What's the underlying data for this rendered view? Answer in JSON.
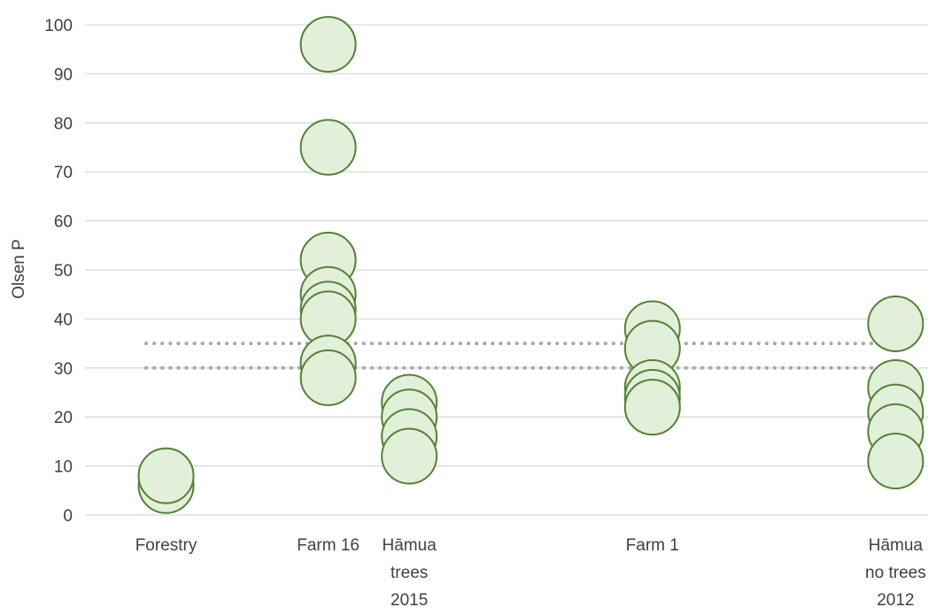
{
  "chart_data": {
    "type": "scatter",
    "title": "",
    "xlabel": "",
    "ylabel": "Olsen P",
    "ylim": [
      0,
      100
    ],
    "y_ticks": [
      "0",
      "10",
      "20",
      "30",
      "40",
      "50",
      "60",
      "70",
      "80",
      "90",
      "100"
    ],
    "grid": true,
    "legend": "none",
    "categories": [
      {
        "x": 1,
        "label_lines": [
          "Forestry"
        ]
      },
      {
        "x": 3,
        "label_lines": [
          "Farm 16"
        ]
      },
      {
        "x": 4,
        "label_lines": [
          "Hāmua",
          "trees",
          "2015"
        ]
      },
      {
        "x": 7,
        "label_lines": [
          "Farm 1"
        ]
      },
      {
        "x": 10,
        "label_lines": [
          "Hāmua",
          "no trees",
          "2012"
        ]
      }
    ],
    "xlim": [
      0,
      10.4
    ],
    "series": [
      {
        "points": [
          {
            "x": 1,
            "y": 6
          },
          {
            "x": 1,
            "y": 8
          },
          {
            "x": 3,
            "y": 96
          },
          {
            "x": 3,
            "y": 75
          },
          {
            "x": 3,
            "y": 52
          },
          {
            "x": 3,
            "y": 45
          },
          {
            "x": 3,
            "y": 42
          },
          {
            "x": 3,
            "y": 40
          },
          {
            "x": 3,
            "y": 31
          },
          {
            "x": 3,
            "y": 28
          },
          {
            "x": 4,
            "y": 23
          },
          {
            "x": 4,
            "y": 20
          },
          {
            "x": 4,
            "y": 16
          },
          {
            "x": 4,
            "y": 12
          },
          {
            "x": 7,
            "y": 38
          },
          {
            "x": 7,
            "y": 34
          },
          {
            "x": 7,
            "y": 26
          },
          {
            "x": 7,
            "y": 24
          },
          {
            "x": 7,
            "y": 22
          },
          {
            "x": 10,
            "y": 39
          },
          {
            "x": 10,
            "y": 26
          },
          {
            "x": 10,
            "y": 21
          },
          {
            "x": 10,
            "y": 17
          },
          {
            "x": 10,
            "y": 11
          }
        ]
      }
    ],
    "reference_lines": [
      {
        "y": 30,
        "style": "dotted"
      },
      {
        "y": 35,
        "style": "dotted"
      }
    ],
    "colors": {
      "marker_fill": "#e2efd9",
      "marker_stroke": "#538135",
      "grid": "#d9d9d9",
      "reference": "#a6a6a6",
      "text": "#404040"
    }
  }
}
